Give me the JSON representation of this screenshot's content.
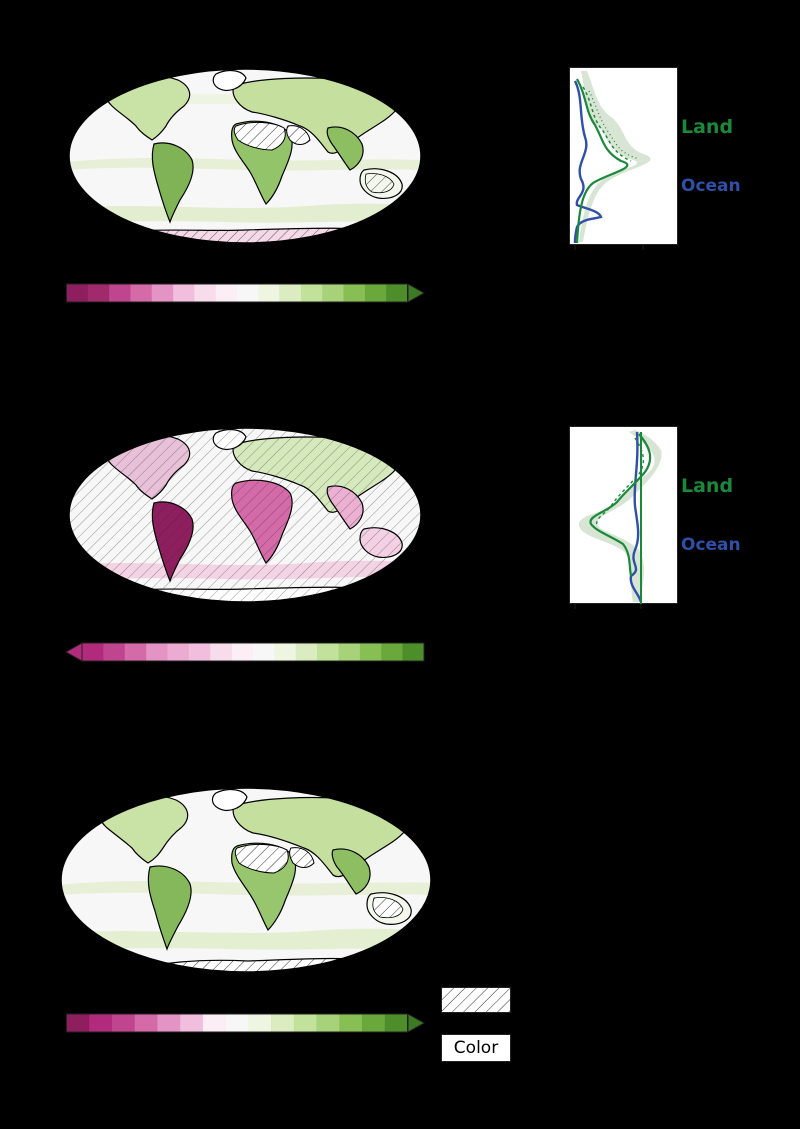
{
  "maps": [
    {
      "id": "map-1",
      "hatch_regions": [
        "north-africa",
        "arabia",
        "australia",
        "antarctica",
        "greenland"
      ]
    },
    {
      "id": "map-2",
      "hatch_regions": [
        "global-background"
      ]
    },
    {
      "id": "map-3",
      "hatch_regions": [
        "north-africa",
        "arabia",
        "australia",
        "antarctica",
        "greenland"
      ]
    }
  ],
  "colorbars": [
    {
      "id": "cbar-1",
      "extend": "right",
      "colors": [
        "#8e1e5e",
        "#a02a6c",
        "#c0458f",
        "#d46aa8",
        "#e494c4",
        "#f1bedd",
        "#f8dcec",
        "#fbeef5",
        "#f7f7f7",
        "#eef5e0",
        "#dbedc0",
        "#c2e29b",
        "#a7d27a",
        "#88bf55",
        "#6aa83c",
        "#4d8e2b"
      ]
    },
    {
      "id": "cbar-2",
      "extend": "left",
      "colors": [
        "#b22a7c",
        "#c0458f",
        "#d46aa8",
        "#e494c4",
        "#ecabd2",
        "#f1bedd",
        "#f8dcec",
        "#fbeef5",
        "#f7f7f7",
        "#eef5e0",
        "#dbedc0",
        "#c2e29b",
        "#a7d27a",
        "#88bf55",
        "#6aa83c",
        "#4d8e2b"
      ]
    },
    {
      "id": "cbar-3",
      "extend": "right",
      "colors": [
        "#8e1e5e",
        "#b22a7c",
        "#c0458f",
        "#d46aa8",
        "#e494c4",
        "#f1bedd",
        "#fbeef5",
        "#f7f7f7",
        "#eef5e0",
        "#dbedc0",
        "#c2e29b",
        "#a7d27a",
        "#88bf55",
        "#6aa83c",
        "#4d8e2b"
      ]
    }
  ],
  "profiles": [
    {
      "id": "profile-1",
      "labels": [
        {
          "text": "Land",
          "color": "#1a8a3a"
        },
        {
          "text": "Ocean",
          "color": "#2f4fa8"
        }
      ]
    },
    {
      "id": "profile-2",
      "labels": [
        {
          "text": "Land",
          "color": "#1a8a3a"
        },
        {
          "text": "Ocean",
          "color": "#2f4fa8"
        }
      ]
    }
  ],
  "legend": {
    "color_label": "Color"
  },
  "colors": {
    "land_line": "#1a8a3a",
    "ocean_line": "#2f4fa8",
    "shade": "#c9d8c6",
    "background": "#000000"
  }
}
